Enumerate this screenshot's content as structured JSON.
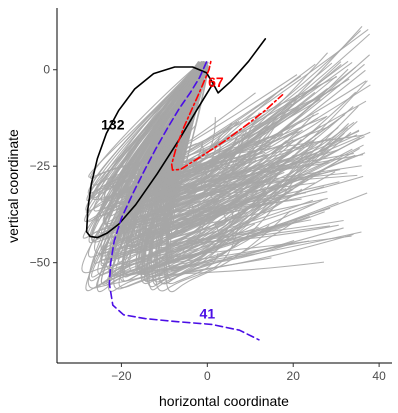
{
  "chart_data": {
    "type": "line",
    "xlabel": "horizontal coordinate",
    "ylabel": "vertical coordinate",
    "xlim": [
      -35,
      43
    ],
    "ylim": [
      -76,
      16
    ],
    "x_ticks": [
      -20,
      0,
      20,
      40
    ],
    "y_ticks": [
      0,
      -25,
      -50
    ],
    "x_tick_labels": [
      "−20",
      "0",
      "20",
      "40"
    ],
    "y_tick_labels": [
      "0",
      "−25",
      "−50"
    ],
    "grid": false,
    "legend": "none",
    "colors": {
      "background_traces": "#a6a6a6",
      "curve_132": "#000000",
      "curve_67": "#ff0000",
      "curve_41": "#4b0ee6"
    },
    "annotations": [
      {
        "text": "132",
        "x": -22,
        "y": -15.5,
        "color": "#000000"
      },
      {
        "text": "67",
        "x": 2,
        "y": -4.5,
        "color": "#ff0000"
      },
      {
        "text": "41",
        "x": 0,
        "y": -64.5,
        "color": "#4b0ee6"
      }
    ],
    "series": [
      {
        "label": "132",
        "style": "solid",
        "color": "#000000",
        "x": [
          -28.1,
          -27.8,
          -27.0,
          -25.6,
          -23.5,
          -20.6,
          -16.9,
          -12.5,
          -7.6,
          -3.4,
          -0.2,
          1.3,
          2.5,
          5.5,
          9.6,
          13.5
        ],
        "y": [
          -42.0,
          -36.0,
          -29.5,
          -23.0,
          -16.5,
          -10.5,
          -5.0,
          -1.0,
          0.7,
          0.7,
          -0.8,
          -3.5,
          -6.0,
          -3.0,
          2.2,
          8.0
        ]
      },
      {
        "label": "132-lower",
        "style": "solid",
        "color": "#000000",
        "x": [
          -28.1,
          -27.3,
          -25.6,
          -23.3,
          -20.6,
          -16.7,
          -11.7,
          -6.5,
          -2.5,
          1.1
        ],
        "y": [
          -42.0,
          -43.2,
          -43.5,
          -42.3,
          -40.0,
          -35.0,
          -27.0,
          -18.0,
          -10.5,
          -4.0
        ]
      },
      {
        "label": "67",
        "style": "dotdash",
        "color": "#ff0000",
        "x": [
          0.8,
          0.4,
          -1.5,
          -3.5,
          -5.5,
          -7.2,
          -8.3,
          -8.1,
          -6.2,
          -1.5,
          4.0,
          9.5,
          13.5,
          16.0,
          17.5
        ],
        "y": [
          2.1,
          0.0,
          -5.0,
          -10.0,
          -15.0,
          -20.0,
          -24.5,
          -26.0,
          -25.8,
          -22.5,
          -18.5,
          -14.0,
          -10.5,
          -8.0,
          -6.5
        ]
      },
      {
        "label": "41",
        "style": "dashed",
        "color": "#4b0ee6",
        "x": [
          -0.2,
          -1.8,
          -4.0,
          -6.5,
          -9.2,
          -12.0,
          -14.6,
          -17.3,
          -20.0,
          -21.7,
          -22.5,
          -22.8,
          -22.0,
          -19.5,
          -14.5,
          -7.0,
          1.0,
          7.5,
          12.0
        ],
        "y": [
          2.0,
          -2.0,
          -6.0,
          -10.0,
          -15.0,
          -20.5,
          -26.0,
          -32.0,
          -38.5,
          -44.5,
          -50.0,
          -55.5,
          -61.0,
          -63.5,
          -64.5,
          -65.3,
          -66.0,
          -67.5,
          -70.0
        ]
      }
    ]
  }
}
